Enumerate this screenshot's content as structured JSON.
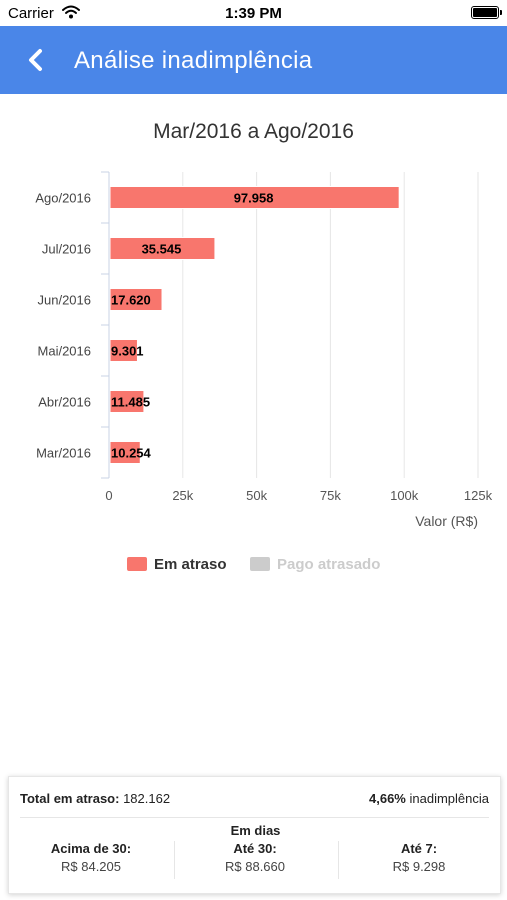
{
  "status_bar": {
    "carrier": "Carrier",
    "time": "1:39 PM"
  },
  "nav": {
    "title": "Análise inadimplência",
    "back_icon": "chevron-left-icon"
  },
  "colors": {
    "nav_bg": "#4a86e8",
    "bar": "#f8766d",
    "legend_inactive": "#cccccc"
  },
  "chart_title": "Mar/2016 a Ago/2016",
  "chart_data": {
    "type": "bar",
    "orientation": "horizontal",
    "title": "Mar/2016 a Ago/2016",
    "xlabel": "Valor (R$)",
    "ylabel": "",
    "categories": [
      "Ago/2016",
      "Jul/2016",
      "Jun/2016",
      "Mai/2016",
      "Abr/2016",
      "Mar/2016"
    ],
    "series": [
      {
        "name": "Em atraso",
        "values": [
          97958,
          35545,
          17620,
          9301,
          11485,
          10254
        ],
        "labels": [
          "97.958",
          "35.545",
          "17.620",
          "9.301",
          "11.485",
          "10.254"
        ]
      }
    ],
    "xlim": [
      0,
      125000
    ],
    "xticks": [
      0,
      25000,
      50000,
      75000,
      100000,
      125000
    ],
    "xtick_labels": [
      "0",
      "25k",
      "50k",
      "75k",
      "100k",
      "125k"
    ],
    "grid": true,
    "legend_position": "bottom"
  },
  "legend": {
    "item1": "Em atraso",
    "item2": "Pago atrasado"
  },
  "summary": {
    "total_label": "Total em atraso:",
    "total_value": "182.162",
    "rate_value": "4,66%",
    "rate_label": "inadimplência",
    "days_title": "Em dias",
    "columns": [
      {
        "label": "Acima de 30:",
        "value": "R$ 84.205"
      },
      {
        "label": "Até 30:",
        "value": "R$ 88.660"
      },
      {
        "label": "Até 7:",
        "value": "R$ 9.298"
      }
    ]
  }
}
